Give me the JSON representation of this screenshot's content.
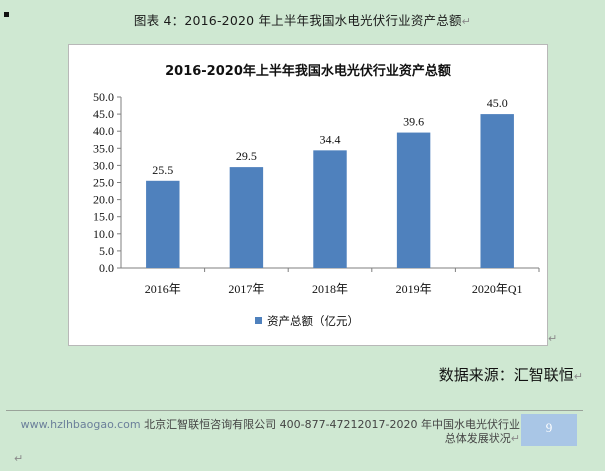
{
  "caption": {
    "text": "图表 4：2016-2020 年上半年我国水电光伏行业资产总额"
  },
  "chart_data": {
    "type": "bar",
    "title": "2016-2020年上半年我国水电光伏行业资产总额",
    "categories": [
      "2016年",
      "2017年",
      "2018年",
      "2019年",
      "2020年Q1"
    ],
    "series": [
      {
        "name": "资产总额（亿元）",
        "values": [
          25.5,
          29.5,
          34.4,
          39.6,
          45.0
        ],
        "labels": [
          "25.5",
          "29.5",
          "34.4",
          "39.6",
          "45.0"
        ]
      }
    ],
    "y_ticks": [
      "0.0",
      "5.0",
      "10.0",
      "15.0",
      "20.0",
      "25.0",
      "30.0",
      "35.0",
      "40.0",
      "45.0",
      "50.0"
    ],
    "ylim": [
      0,
      50
    ],
    "xlabel": "",
    "ylabel": "",
    "grid": false,
    "legend_position": "bottom",
    "bar_color": "#4f81bd"
  },
  "source": {
    "text": "数据来源：汇智联恒"
  },
  "footer": {
    "url": "www.hzlhbaogao.com",
    "company": " 北京汇智联恒咨询有限公司  400-877-47212017-2020 年中国水电光伏行业",
    "line2": "总体发展状况",
    "page_number": "9"
  }
}
